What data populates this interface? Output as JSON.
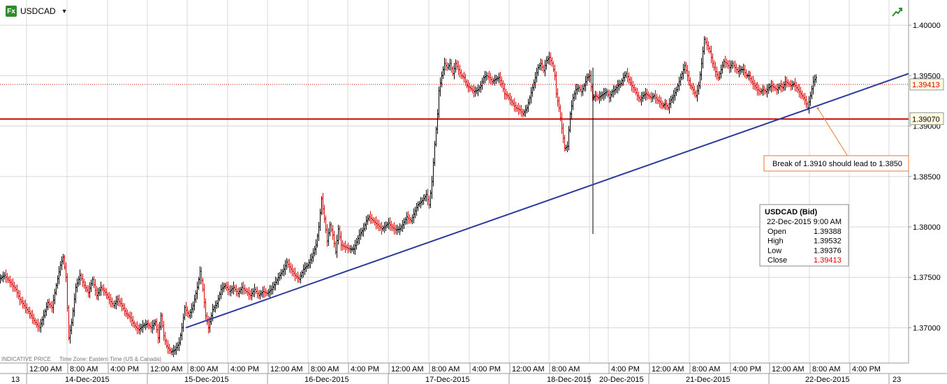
{
  "header": {
    "symbol": "USDCAD",
    "fx_badge": "Fx"
  },
  "footer": {
    "indicative": "INDICATIVE PRICE",
    "timezone": "Time Zone: Eastern Time (US & Canada)"
  },
  "price_levels": {
    "last_price": "1.39413",
    "support": "1.39070",
    "support_value": 1.3907,
    "last_value": 1.39413
  },
  "annotation": "Break of 1.3910 should lead to 1.3850",
  "info_box": {
    "title": "USDCAD (Bid)",
    "datetime": "22-Dec-2015 9:00 AM",
    "rows": [
      {
        "label": "Open",
        "value": "1.39388"
      },
      {
        "label": "High",
        "value": "1.39532"
      },
      {
        "label": "Low",
        "value": "1.39376"
      },
      {
        "label": "Close",
        "value": "1.39413"
      }
    ]
  },
  "colors": {
    "up": "#000000",
    "down": "#dd0000",
    "trendline": "#2b3a9c",
    "support": "#cc0000",
    "annotation": "#e87a2d",
    "grid": "#d8d8d8"
  },
  "chart_data": {
    "type": "ohlc",
    "symbol": "USDCAD",
    "ylim": [
      1.3665,
      1.4025
    ],
    "y_ticks": [
      "1.40000",
      "1.39500",
      "1.39000",
      "1.38500",
      "1.38000",
      "1.37500",
      "1.37000"
    ],
    "time_labels": [
      "12:00 AM",
      "8:00 AM",
      "4:00 PM",
      "12:00 AM",
      "8:00 AM",
      "4:00 PM",
      "12:00 AM",
      "8:00 AM",
      "4:00 PM",
      "12:00 AM",
      "8:00 AM",
      "4:00 PM",
      "12:00 AM",
      "8:00 AM",
      "4:00 PM",
      "12:00 AM",
      "8:00 AM",
      "4:00 PM",
      "12:00 AM",
      "8:00 AM",
      "4:00 PM"
    ],
    "date_labels": [
      "13",
      "14-Dec-2015",
      "15-Dec-2015",
      "16-Dec-2015",
      "17-Dec-2015",
      "18-Dec-2015",
      "20-Dec-2015",
      "21-Dec-2015",
      "22-Dec-2015",
      "23"
    ],
    "trendline": {
      "start": [
        "15-Dec-2015 8:00 AM",
        1.37
      ],
      "end": [
        "22-Dec-2015",
        1.3952
      ]
    },
    "horizontal_lines": [
      {
        "value": 1.3907,
        "label": "1.39070"
      },
      {
        "value": 1.39413,
        "label": "1.39413"
      }
    ],
    "path": [
      [
        0,
        1.3748
      ],
      [
        8,
        1.3752
      ],
      [
        16,
        1.3745
      ],
      [
        24,
        1.3738
      ],
      [
        30,
        1.3728
      ],
      [
        38,
        1.372
      ],
      [
        46,
        1.3712
      ],
      [
        52,
        1.3705
      ],
      [
        58,
        1.37
      ],
      [
        64,
        1.3712
      ],
      [
        70,
        1.3725
      ],
      [
        76,
        1.372
      ],
      [
        82,
        1.3742
      ],
      [
        88,
        1.3762
      ],
      [
        92,
        1.377
      ],
      [
        96,
        1.375
      ],
      [
        100,
        1.369
      ],
      [
        104,
        1.3705
      ],
      [
        110,
        1.374
      ],
      [
        116,
        1.3752
      ],
      [
        122,
        1.3742
      ],
      [
        128,
        1.3735
      ],
      [
        134,
        1.3748
      ],
      [
        140,
        1.3732
      ],
      [
        146,
        1.374
      ],
      [
        152,
        1.3735
      ],
      [
        158,
        1.3728
      ],
      [
        164,
        1.3722
      ],
      [
        170,
        1.3728
      ],
      [
        176,
        1.3722
      ],
      [
        182,
        1.3714
      ],
      [
        188,
        1.371
      ],
      [
        194,
        1.3702
      ],
      [
        200,
        1.3698
      ],
      [
        206,
        1.3702
      ],
      [
        212,
        1.3704
      ],
      [
        218,
        1.37
      ],
      [
        224,
        1.3706
      ],
      [
        228,
        1.369
      ],
      [
        232,
        1.3712
      ],
      [
        236,
        1.3692
      ],
      [
        240,
        1.3682
      ],
      [
        246,
        1.3676
      ],
      [
        252,
        1.3678
      ],
      [
        258,
        1.3685
      ],
      [
        262,
        1.37
      ],
      [
        266,
        1.372
      ],
      [
        272,
        1.3712
      ],
      [
        278,
        1.3722
      ],
      [
        284,
        1.374
      ],
      [
        288,
        1.3756
      ],
      [
        292,
        1.3738
      ],
      [
        296,
        1.3712
      ],
      [
        300,
        1.37
      ],
      [
        306,
        1.3718
      ],
      [
        312,
        1.3724
      ],
      [
        318,
        1.3738
      ],
      [
        324,
        1.3742
      ],
      [
        330,
        1.3736
      ],
      [
        336,
        1.374
      ],
      [
        342,
        1.3734
      ],
      [
        348,
        1.374
      ],
      [
        354,
        1.3736
      ],
      [
        360,
        1.3732
      ],
      [
        366,
        1.3738
      ],
      [
        372,
        1.3732
      ],
      [
        378,
        1.3736
      ],
      [
        384,
        1.3734
      ],
      [
        390,
        1.3738
      ],
      [
        396,
        1.3745
      ],
      [
        402,
        1.3752
      ],
      [
        408,
        1.3758
      ],
      [
        412,
        1.3765
      ],
      [
        418,
        1.3758
      ],
      [
        424,
        1.3752
      ],
      [
        430,
        1.3748
      ],
      [
        436,
        1.3758
      ],
      [
        442,
        1.3762
      ],
      [
        448,
        1.377
      ],
      [
        454,
        1.3782
      ],
      [
        458,
        1.38
      ],
      [
        462,
        1.3828
      ],
      [
        466,
        1.3808
      ],
      [
        470,
        1.3786
      ],
      [
        474,
        1.3802
      ],
      [
        478,
        1.3792
      ],
      [
        482,
        1.3775
      ],
      [
        486,
        1.3798
      ],
      [
        490,
        1.3782
      ],
      [
        496,
        1.378
      ],
      [
        502,
        1.3778
      ],
      [
        508,
        1.3778
      ],
      [
        512,
        1.3785
      ],
      [
        516,
        1.3792
      ],
      [
        522,
        1.3798
      ],
      [
        526,
        1.3806
      ],
      [
        530,
        1.381
      ],
      [
        536,
        1.3806
      ],
      [
        542,
        1.3802
      ],
      [
        548,
        1.3798
      ],
      [
        552,
        1.38
      ],
      [
        558,
        1.3804
      ],
      [
        562,
        1.38
      ],
      [
        568,
        1.3797
      ],
      [
        574,
        1.3798
      ],
      [
        578,
        1.3802
      ],
      [
        584,
        1.381
      ],
      [
        590,
        1.3806
      ],
      [
        596,
        1.3816
      ],
      [
        600,
        1.3822
      ],
      [
        606,
        1.3826
      ],
      [
        612,
        1.3832
      ],
      [
        616,
        1.3822
      ],
      [
        620,
        1.3845
      ],
      [
        624,
        1.3882
      ],
      [
        628,
        1.3912
      ],
      [
        630,
        1.3935
      ],
      [
        634,
        1.395
      ],
      [
        638,
        1.3962
      ],
      [
        642,
        1.3958
      ],
      [
        646,
        1.3962
      ],
      [
        650,
        1.3952
      ],
      [
        654,
        1.3962
      ],
      [
        658,
        1.3956
      ],
      [
        662,
        1.395
      ],
      [
        666,
        1.3948
      ],
      [
        670,
        1.394
      ],
      [
        676,
        1.3937
      ],
      [
        680,
        1.3934
      ],
      [
        686,
        1.3936
      ],
      [
        690,
        1.394
      ],
      [
        694,
        1.3948
      ],
      [
        698,
        1.395
      ],
      [
        702,
        1.3948
      ],
      [
        706,
        1.3944
      ],
      [
        710,
        1.3946
      ],
      [
        716,
        1.3948
      ],
      [
        720,
        1.3942
      ],
      [
        724,
        1.3932
      ],
      [
        728,
        1.393
      ],
      [
        732,
        1.3926
      ],
      [
        736,
        1.3922
      ],
      [
        740,
        1.3918
      ],
      [
        746,
        1.3916
      ],
      [
        750,
        1.3912
      ],
      [
        756,
        1.3918
      ],
      [
        760,
        1.3928
      ],
      [
        764,
        1.3938
      ],
      [
        768,
        1.3948
      ],
      [
        772,
        1.3958
      ],
      [
        776,
        1.3962
      ],
      [
        780,
        1.3955
      ],
      [
        784,
        1.3965
      ],
      [
        788,
        1.3968
      ],
      [
        792,
        1.3962
      ],
      [
        796,
        1.395
      ],
      [
        798,
        1.3932
      ],
      [
        802,
        1.3918
      ],
      [
        806,
        1.3898
      ],
      [
        810,
        1.3878
      ],
      [
        814,
        1.388
      ],
      [
        818,
        1.3912
      ],
      [
        822,
        1.3928
      ],
      [
        826,
        1.3936
      ],
      [
        830,
        1.3938
      ],
      [
        834,
        1.3934
      ],
      [
        838,
        1.394
      ],
      [
        842,
        1.3948
      ],
      [
        846,
        1.395
      ],
      [
        850,
        1.3928
      ],
      [
        854,
        1.393
      ],
      [
        858,
        1.3928
      ],
      [
        862,
        1.393
      ],
      [
        866,
        1.3932
      ],
      [
        870,
        1.3934
      ],
      [
        874,
        1.3928
      ],
      [
        878,
        1.3934
      ],
      [
        882,
        1.3936
      ],
      [
        886,
        1.394
      ],
      [
        890,
        1.3942
      ],
      [
        894,
        1.3948
      ],
      [
        898,
        1.3952
      ],
      [
        902,
        1.3946
      ],
      [
        906,
        1.394
      ],
      [
        910,
        1.3936
      ],
      [
        914,
        1.393
      ],
      [
        918,
        1.3926
      ],
      [
        922,
        1.393
      ],
      [
        926,
        1.3932
      ],
      [
        930,
        1.393
      ],
      [
        934,
        1.3928
      ],
      [
        938,
        1.393
      ],
      [
        942,
        1.3926
      ],
      [
        946,
        1.3924
      ],
      [
        950,
        1.392
      ],
      [
        954,
        1.3922
      ],
      [
        958,
        1.3918
      ],
      [
        962,
        1.3926
      ],
      [
        966,
        1.393
      ],
      [
        970,
        1.3936
      ],
      [
        974,
        1.3944
      ],
      [
        978,
        1.3952
      ],
      [
        982,
        1.396
      ],
      [
        986,
        1.395
      ],
      [
        990,
        1.394
      ],
      [
        994,
        1.3936
      ],
      [
        998,
        1.393
      ],
      [
        1002,
        1.394
      ],
      [
        1006,
        1.3962
      ],
      [
        1010,
        1.3986
      ],
      [
        1014,
        1.398
      ],
      [
        1018,
        1.3974
      ],
      [
        1022,
        1.3962
      ],
      [
        1026,
        1.3954
      ],
      [
        1030,
        1.3948
      ],
      [
        1034,
        1.3956
      ],
      [
        1038,
        1.3964
      ],
      [
        1042,
        1.3962
      ],
      [
        1046,
        1.3958
      ],
      [
        1050,
        1.3962
      ],
      [
        1054,
        1.3958
      ],
      [
        1058,
        1.3954
      ],
      [
        1062,
        1.3956
      ],
      [
        1066,
        1.3956
      ],
      [
        1070,
        1.395
      ],
      [
        1074,
        1.395
      ],
      [
        1078,
        1.3944
      ],
      [
        1082,
        1.394
      ],
      [
        1086,
        1.3936
      ],
      [
        1090,
        1.3934
      ],
      [
        1094,
        1.3936
      ],
      [
        1098,
        1.3934
      ],
      [
        1102,
        1.3938
      ],
      [
        1106,
        1.394
      ],
      [
        1110,
        1.3938
      ],
      [
        1114,
        1.3936
      ],
      [
        1118,
        1.394
      ],
      [
        1122,
        1.3938
      ],
      [
        1126,
        1.3944
      ],
      [
        1130,
        1.3942
      ],
      [
        1134,
        1.394
      ],
      [
        1138,
        1.3942
      ],
      [
        1142,
        1.3938
      ],
      [
        1146,
        1.3934
      ],
      [
        1150,
        1.393
      ],
      [
        1154,
        1.3926
      ],
      [
        1158,
        1.3918
      ],
      [
        1162,
        1.393
      ],
      [
        1166,
        1.3944
      ],
      [
        1170,
        1.3948
      ]
    ],
    "spikes": [
      {
        "x": 849,
        "high": 1.3958,
        "low": 1.3793,
        "color": "black"
      }
    ]
  }
}
